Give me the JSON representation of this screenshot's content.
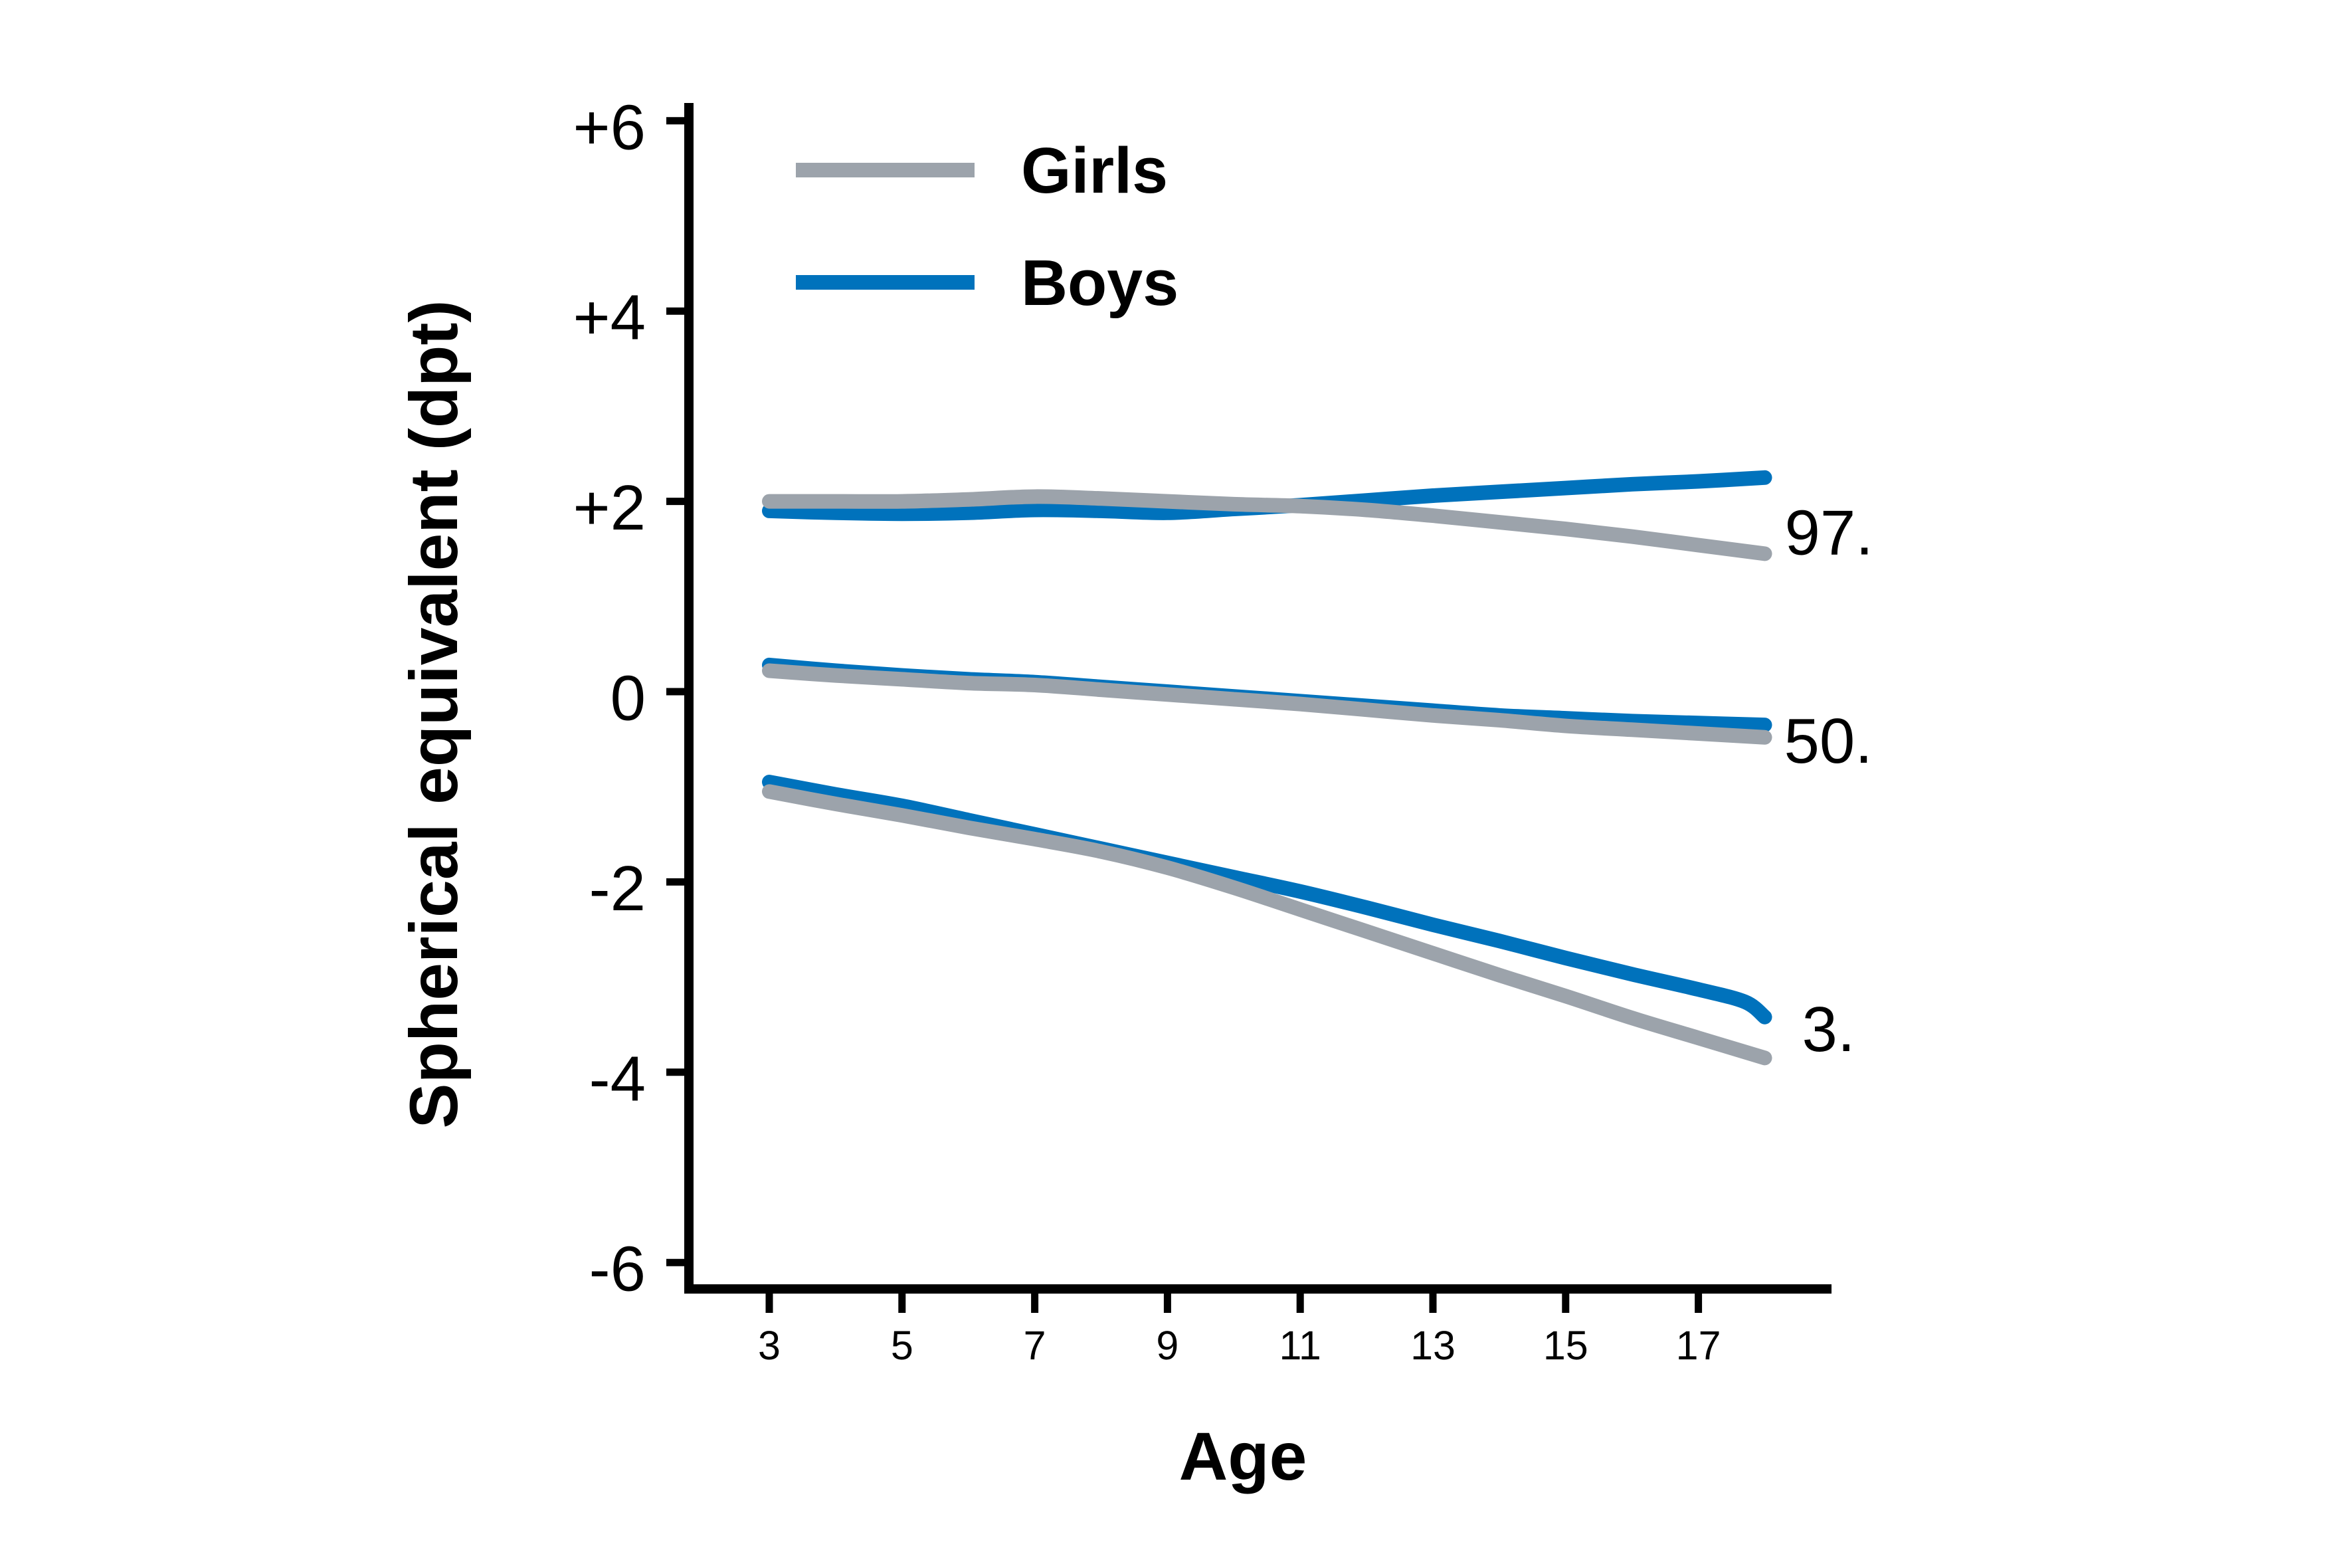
{
  "figure": {
    "background": "#ffffff",
    "axis_color": "#000000",
    "ylabel": "Spherical equivalent (dpt)",
    "xlabel": "Age"
  },
  "legend": {
    "items": [
      {
        "label": "Girls",
        "color": "#9CA3AB"
      },
      {
        "label": "Boys",
        "color": "#0072BC"
      }
    ]
  },
  "chart_data": {
    "type": "line",
    "title": "",
    "xlabel": "Age",
    "ylabel": "Spherical equivalent (dpt)",
    "xlim": [
      1.8,
      19.8
    ],
    "ylim": [
      -6.6,
      6.6
    ],
    "grid": false,
    "legend_position": "top-left-inside",
    "xticks": [
      3,
      5,
      7,
      9,
      11,
      13,
      15,
      17
    ],
    "yticks": [
      {
        "value": 6,
        "label": "+6"
      },
      {
        "value": 4,
        "label": "+4"
      },
      {
        "value": 2,
        "label": "+2"
      },
      {
        "value": 0,
        "label": "0"
      },
      {
        "value": -2,
        "label": "-2"
      },
      {
        "value": -4,
        "label": "-4"
      },
      {
        "value": -6,
        "label": "-6"
      }
    ],
    "series": [
      {
        "name": "Girls 97th percentile",
        "group": "Girls",
        "percentile": "97.",
        "color": "#9CA3AB",
        "points": [
          [
            3,
            2.0
          ],
          [
            4,
            2.0
          ],
          [
            5,
            2.0
          ],
          [
            6,
            2.02
          ],
          [
            7,
            2.05
          ],
          [
            8,
            2.03
          ],
          [
            9,
            2.0
          ],
          [
            10,
            1.97
          ],
          [
            11,
            1.95
          ],
          [
            12,
            1.91
          ],
          [
            13,
            1.85
          ],
          [
            14,
            1.78
          ],
          [
            15,
            1.71
          ],
          [
            16,
            1.63
          ],
          [
            17,
            1.54
          ],
          [
            18,
            1.45
          ]
        ]
      },
      {
        "name": "Girls 50th percentile",
        "group": "Girls",
        "percentile": "50.",
        "color": "#9CA3AB",
        "points": [
          [
            3,
            0.22
          ],
          [
            4,
            0.17
          ],
          [
            5,
            0.13
          ],
          [
            6,
            0.09
          ],
          [
            7,
            0.07
          ],
          [
            8,
            0.02
          ],
          [
            9,
            -0.03
          ],
          [
            10,
            -0.08
          ],
          [
            11,
            -0.13
          ],
          [
            12,
            -0.19
          ],
          [
            13,
            -0.25
          ],
          [
            14,
            -0.3
          ],
          [
            15,
            -0.36
          ],
          [
            16,
            -0.4
          ],
          [
            17,
            -0.44
          ],
          [
            18,
            -0.48
          ]
        ]
      },
      {
        "name": "Girls 3rd percentile",
        "group": "Girls",
        "percentile": "3.",
        "color": "#9CA3AB",
        "points": [
          [
            3,
            -1.05
          ],
          [
            4,
            -1.18
          ],
          [
            5,
            -1.3
          ],
          [
            6,
            -1.43
          ],
          [
            7,
            -1.55
          ],
          [
            8,
            -1.68
          ],
          [
            9,
            -1.85
          ],
          [
            10,
            -2.06
          ],
          [
            11,
            -2.29
          ],
          [
            12,
            -2.52
          ],
          [
            13,
            -2.75
          ],
          [
            14,
            -2.98
          ],
          [
            15,
            -3.2
          ],
          [
            16,
            -3.43
          ],
          [
            17,
            -3.64
          ],
          [
            18,
            -3.85
          ]
        ]
      },
      {
        "name": "Boys 97th percentile",
        "group": "Boys",
        "percentile": "97.",
        "color": "#0072BC",
        "points": [
          [
            3,
            1.9
          ],
          [
            4,
            1.88
          ],
          [
            5,
            1.87
          ],
          [
            6,
            1.88
          ],
          [
            7,
            1.91
          ],
          [
            8,
            1.9
          ],
          [
            9,
            1.88
          ],
          [
            10,
            1.92
          ],
          [
            11,
            1.96
          ],
          [
            12,
            2.01
          ],
          [
            13,
            2.06
          ],
          [
            14,
            2.1
          ],
          [
            15,
            2.14
          ],
          [
            16,
            2.18
          ],
          [
            17,
            2.21
          ],
          [
            18,
            2.25
          ]
        ]
      },
      {
        "name": "Boys 50th percentile",
        "group": "Boys",
        "percentile": "50.",
        "color": "#0072BC",
        "points": [
          [
            3,
            0.28
          ],
          [
            4,
            0.22
          ],
          [
            5,
            0.17
          ],
          [
            6,
            0.13
          ],
          [
            7,
            0.1
          ],
          [
            8,
            0.05
          ],
          [
            9,
            0.0
          ],
          [
            10,
            -0.05
          ],
          [
            11,
            -0.1
          ],
          [
            12,
            -0.15
          ],
          [
            13,
            -0.2
          ],
          [
            14,
            -0.25
          ],
          [
            15,
            -0.28
          ],
          [
            16,
            -0.31
          ],
          [
            17,
            -0.33
          ],
          [
            18,
            -0.35
          ]
        ]
      },
      {
        "name": "Boys 3rd percentile",
        "group": "Boys",
        "percentile": "3.",
        "color": "#0072BC",
        "points": [
          [
            3,
            -0.95
          ],
          [
            4,
            -1.08
          ],
          [
            5,
            -1.2
          ],
          [
            6,
            -1.35
          ],
          [
            7,
            -1.5
          ],
          [
            8,
            -1.65
          ],
          [
            9,
            -1.8
          ],
          [
            10,
            -1.95
          ],
          [
            11,
            -2.1
          ],
          [
            12,
            -2.27
          ],
          [
            13,
            -2.45
          ],
          [
            14,
            -2.62
          ],
          [
            15,
            -2.8
          ],
          [
            16,
            -2.97
          ],
          [
            17,
            -3.13
          ],
          [
            17.7,
            -3.26
          ],
          [
            18,
            -3.42
          ]
        ]
      }
    ],
    "annotations": [
      {
        "text": "97.",
        "age": 18.3,
        "value": 1.67
      },
      {
        "text": "50.",
        "age": 18.29,
        "value": -0.52
      },
      {
        "text": "3.",
        "age": 18.56,
        "value": -3.55
      }
    ]
  }
}
